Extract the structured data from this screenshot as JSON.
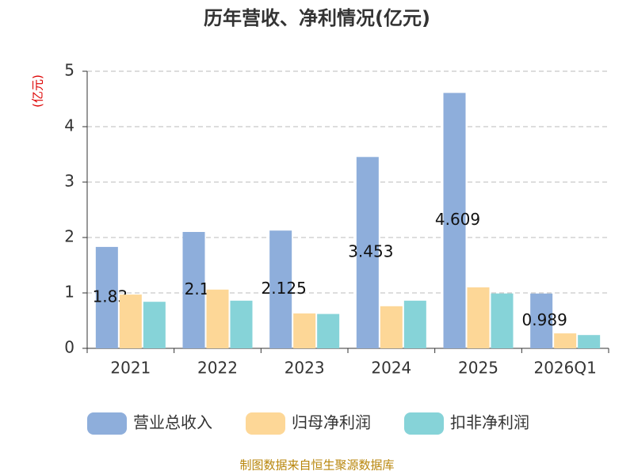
{
  "chart_data": {
    "type": "bar",
    "title": "历年营收、净利情况(亿元)",
    "y_axis_label": "(亿元)",
    "footer": "制图数据来自恒生聚源数据库",
    "categories": [
      "2021",
      "2022",
      "2023",
      "2024",
      "2025",
      "2026Q1"
    ],
    "series": [
      {
        "name": "营业总收入",
        "color": "#8eaedb",
        "values": [
          1.83,
          2.1,
          2.125,
          3.453,
          4.609,
          0.989
        ]
      },
      {
        "name": "归母净利润",
        "color": "#fdd797",
        "values": [
          0.97,
          1.06,
          0.63,
          0.76,
          1.1,
          0.27
        ]
      },
      {
        "name": "扣非净利润",
        "color": "#86d3d8",
        "values": [
          0.84,
          0.86,
          0.62,
          0.86,
          0.99,
          0.24
        ]
      }
    ],
    "ylim": [
      0,
      5
    ],
    "yticks": [
      0,
      1,
      2,
      3,
      4,
      5
    ],
    "grid": true
  }
}
